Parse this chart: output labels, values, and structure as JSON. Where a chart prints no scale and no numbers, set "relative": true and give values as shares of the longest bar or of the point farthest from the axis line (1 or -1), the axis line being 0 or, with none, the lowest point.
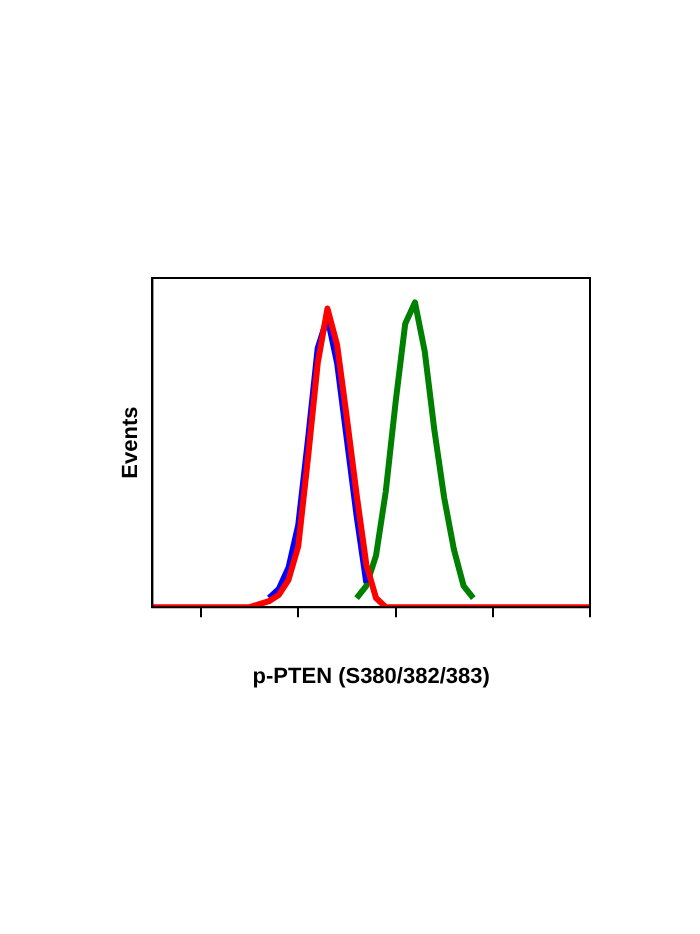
{
  "chart_data": {
    "type": "line",
    "relative": true,
    "xlabel": "p-PTEN (S380/382/383)",
    "ylabel": "Events",
    "grid": false,
    "legend": false,
    "marker": "none",
    "line_style": "solid",
    "categories": [
      null,
      null,
      null,
      null,
      null,
      null,
      null,
      null,
      null,
      null,
      null,
      null,
      null,
      null,
      null,
      null,
      null,
      null,
      null,
      null,
      null,
      null,
      null,
      null,
      null,
      null,
      null,
      null,
      null,
      null,
      null,
      null,
      null,
      null,
      null,
      null,
      null,
      null,
      null,
      null,
      null,
      null,
      null,
      null,
      null,
      null
    ],
    "series": [
      {
        "color": "#ff0000",
        "values": [
          0,
          0,
          0,
          0,
          0,
          0,
          0,
          0,
          0,
          0,
          0,
          0.01,
          0.02,
          0.04,
          0.09,
          0.2,
          0.49,
          0.8,
          0.98,
          0.86,
          0.62,
          0.37,
          0.14,
          0.03,
          0,
          0,
          0,
          0,
          0,
          0,
          0,
          0,
          0,
          0,
          0,
          0,
          0,
          0,
          0,
          0,
          0,
          0,
          0,
          0,
          0,
          0
        ]
      },
      {
        "color": "#0000ff",
        "values": [
          null,
          null,
          null,
          null,
          null,
          null,
          null,
          null,
          null,
          null,
          null,
          null,
          0.03,
          0.06,
          0.13,
          0.27,
          0.55,
          0.85,
          0.95,
          0.8,
          0.55,
          0.3,
          0.08,
          null,
          null,
          null,
          null,
          null,
          null,
          null,
          null,
          null,
          null,
          null,
          null,
          null,
          null,
          null,
          null,
          null,
          null,
          null,
          null,
          null,
          null,
          null
        ]
      },
      {
        "color": "#008000",
        "values": [
          null,
          null,
          null,
          null,
          null,
          null,
          null,
          null,
          null,
          null,
          null,
          null,
          null,
          null,
          null,
          null,
          null,
          null,
          null,
          null,
          null,
          0.03,
          0.07,
          0.17,
          0.38,
          0.67,
          0.93,
          1,
          0.84,
          0.58,
          0.36,
          0.19,
          0.07,
          0.03,
          null,
          null,
          null,
          null,
          null,
          null,
          null,
          null,
          null,
          null,
          null,
          null
        ]
      }
    ]
  }
}
